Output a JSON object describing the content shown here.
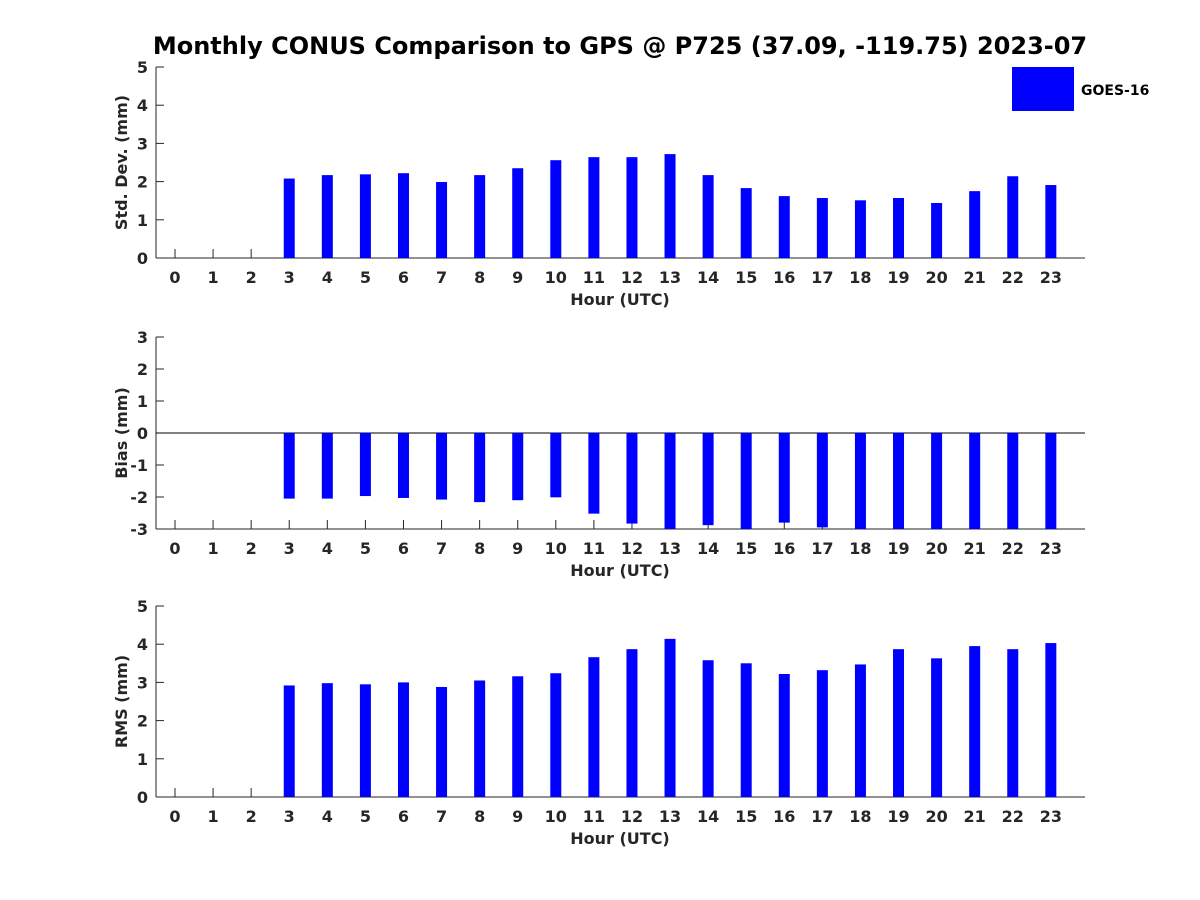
{
  "title": "Monthly CONUS Comparison to GPS @ P725 (37.09, -119.75) 2023-07",
  "legend": {
    "label": "GOES-16",
    "color": "#0000ff",
    "position": "top-right"
  },
  "chart_data": [
    {
      "type": "bar",
      "ylabel": "Std. Dev. (mm)",
      "xlabel": "Hour (UTC)",
      "ylim": [
        0,
        5
      ],
      "yticks": [
        "0",
        "1",
        "2",
        "3",
        "4",
        "5"
      ],
      "categories": [
        "0",
        "1",
        "2",
        "3",
        "4",
        "5",
        "6",
        "7",
        "8",
        "9",
        "10",
        "11",
        "12",
        "13",
        "14",
        "15",
        "16",
        "17",
        "18",
        "19",
        "20",
        "21",
        "22",
        "23"
      ],
      "series": [
        {
          "name": "GOES-16",
          "values": [
            null,
            null,
            null,
            2.08,
            2.17,
            2.19,
            2.22,
            1.99,
            2.17,
            2.35,
            2.56,
            2.64,
            2.64,
            2.72,
            2.17,
            1.83,
            1.62,
            1.57,
            1.51,
            1.57,
            1.44,
            1.75,
            2.14,
            1.91
          ]
        }
      ]
    },
    {
      "type": "bar",
      "ylabel": "Bias (mm)",
      "xlabel": "Hour (UTC)",
      "ylim": [
        -3,
        3
      ],
      "yticks": [
        "-3",
        "-2",
        "-1",
        "0",
        "1",
        "2",
        "3"
      ],
      "categories": [
        "0",
        "1",
        "2",
        "3",
        "4",
        "5",
        "6",
        "7",
        "8",
        "9",
        "10",
        "11",
        "12",
        "13",
        "14",
        "15",
        "16",
        "17",
        "18",
        "19",
        "20",
        "21",
        "22",
        "23"
      ],
      "series": [
        {
          "name": "GOES-16",
          "values": [
            null,
            null,
            null,
            -2.05,
            -2.05,
            -1.97,
            -2.03,
            -2.08,
            -2.16,
            -2.1,
            -2.01,
            -2.52,
            -2.83,
            -3.0,
            -2.88,
            -3.0,
            -2.8,
            -2.95,
            -3.0,
            -3.0,
            -3.0,
            -3.0,
            -3.0,
            -3.0
          ]
        }
      ]
    },
    {
      "type": "bar",
      "ylabel": "RMS (mm)",
      "xlabel": "Hour (UTC)",
      "ylim": [
        0,
        5
      ],
      "yticks": [
        "0",
        "1",
        "2",
        "3",
        "4",
        "5"
      ],
      "categories": [
        "0",
        "1",
        "2",
        "3",
        "4",
        "5",
        "6",
        "7",
        "8",
        "9",
        "10",
        "11",
        "12",
        "13",
        "14",
        "15",
        "16",
        "17",
        "18",
        "19",
        "20",
        "21",
        "22",
        "23"
      ],
      "series": [
        {
          "name": "GOES-16",
          "values": [
            null,
            null,
            null,
            2.92,
            2.98,
            2.95,
            3.0,
            2.88,
            3.05,
            3.16,
            3.24,
            3.66,
            3.87,
            4.14,
            3.58,
            3.5,
            3.22,
            3.32,
            3.47,
            3.87,
            3.63,
            3.95,
            3.87,
            4.03
          ]
        }
      ]
    }
  ]
}
